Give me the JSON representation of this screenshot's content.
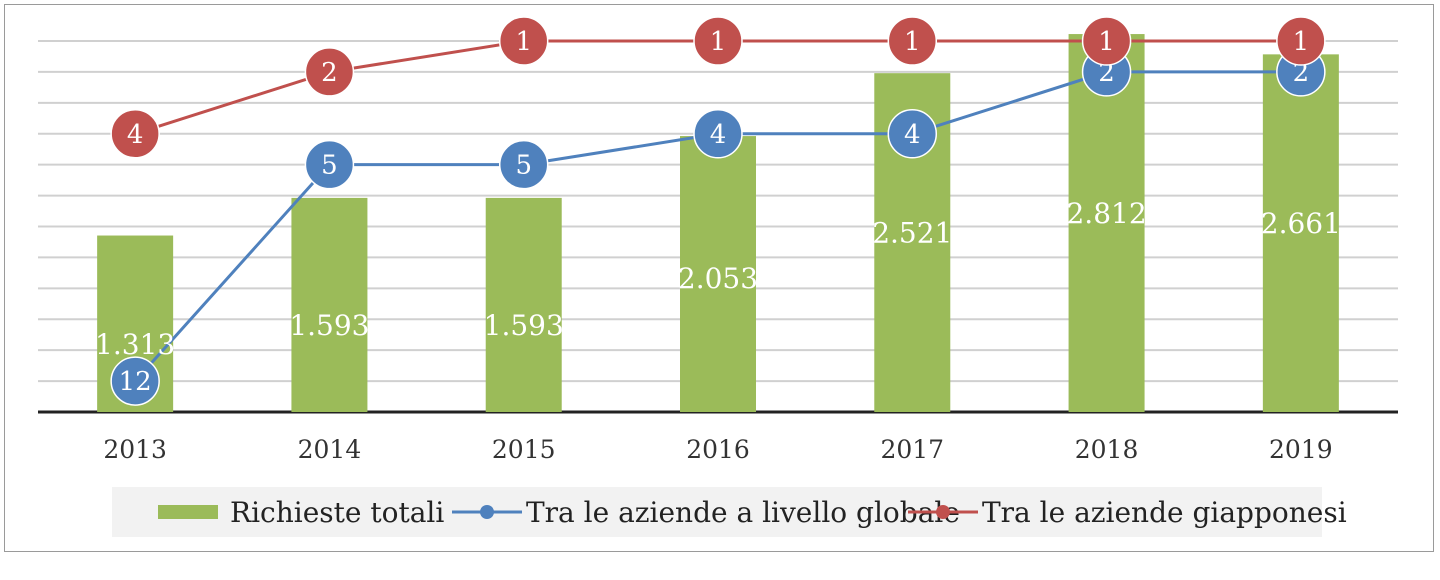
{
  "chart_data": {
    "type": "bar",
    "categories": [
      "2013",
      "2014",
      "2015",
      "2016",
      "2017",
      "2018",
      "2019"
    ],
    "bar_series": {
      "name": "Richieste totali",
      "values": [
        1313,
        1593,
        1593,
        2053,
        2521,
        2812,
        2661
      ],
      "labels": [
        "1.313",
        "1.593",
        "1.593",
        "2.053",
        "2.521",
        "2.812",
        "2.661"
      ],
      "color": "#9bbb59"
    },
    "line_series": [
      {
        "name": "Tra le aziende a livello globale",
        "ranks": [
          12,
          5,
          5,
          4,
          4,
          2,
          2
        ],
        "labels": [
          "12",
          "5",
          "5",
          "4",
          "4",
          "2",
          "2"
        ],
        "color": "#4f81bd"
      },
      {
        "name": "Tra le aziende giapponesi",
        "ranks": [
          4,
          2,
          1,
          1,
          1,
          1,
          1
        ],
        "labels": [
          "4",
          "2",
          "1",
          "1",
          "1",
          "1",
          "1"
        ],
        "color": "#c0504d"
      }
    ],
    "rank_axis": {
      "inverted": true,
      "range": [
        1,
        13
      ]
    },
    "ylim": [
      0,
      3000
    ],
    "grid": true,
    "legend_position": "bottom"
  }
}
